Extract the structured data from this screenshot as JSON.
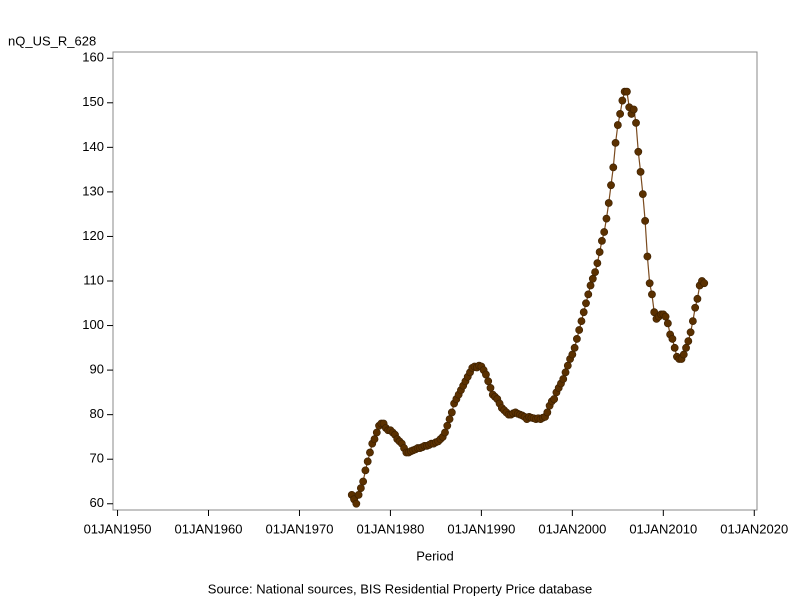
{
  "chart_data": {
    "type": "line",
    "ylabel": "nQ_US_R_628",
    "xlabel": "Period",
    "source": "Source: National sources, BIS Residential Property Price database",
    "color": "#5a3000",
    "line_color": "#7a4a1e",
    "xlim": [
      1949.5,
      2020.3
    ],
    "ylim": [
      58.6,
      161.4
    ],
    "xticks": [
      {
        "value": 1950,
        "label": "01JAN1950"
      },
      {
        "value": 1960,
        "label": "01JAN1960"
      },
      {
        "value": 1970,
        "label": "01JAN1970"
      },
      {
        "value": 1980,
        "label": "01JAN1980"
      },
      {
        "value": 1990,
        "label": "01JAN1990"
      },
      {
        "value": 2000,
        "label": "01JAN2000"
      },
      {
        "value": 2010,
        "label": "01JAN2010"
      },
      {
        "value": 2020,
        "label": "01JAN2020"
      }
    ],
    "yticks": [
      60,
      70,
      80,
      90,
      100,
      110,
      120,
      130,
      140,
      150,
      160
    ],
    "x": [
      1975.75,
      1976,
      1976.25,
      1976.5,
      1976.75,
      1977,
      1977.25,
      1977.5,
      1977.75,
      1978,
      1978.25,
      1978.5,
      1978.75,
      1979,
      1979.25,
      1979.5,
      1979.75,
      1980,
      1980.25,
      1980.5,
      1980.75,
      1981,
      1981.25,
      1981.5,
      1981.75,
      1982,
      1982.25,
      1982.5,
      1982.75,
      1983,
      1983.25,
      1983.5,
      1983.75,
      1984,
      1984.25,
      1984.5,
      1984.75,
      1985,
      1985.25,
      1985.5,
      1985.75,
      1986,
      1986.25,
      1986.5,
      1986.75,
      1987,
      1987.25,
      1987.5,
      1987.75,
      1988,
      1988.25,
      1988.5,
      1988.75,
      1989,
      1989.25,
      1989.5,
      1989.75,
      1990,
      1990.25,
      1990.5,
      1990.75,
      1991,
      1991.25,
      1991.5,
      1991.75,
      1992,
      1992.25,
      1992.5,
      1992.75,
      1993,
      1993.25,
      1993.5,
      1993.75,
      1994,
      1994.25,
      1994.5,
      1994.75,
      1995,
      1995.25,
      1995.5,
      1995.75,
      1996,
      1996.25,
      1996.5,
      1996.75,
      1997,
      1997.25,
      1997.5,
      1997.75,
      1998,
      1998.25,
      1998.5,
      1998.75,
      1999,
      1999.25,
      1999.5,
      1999.75,
      2000,
      2000.25,
      2000.5,
      2000.75,
      2001,
      2001.25,
      2001.5,
      2001.75,
      2002,
      2002.25,
      2002.5,
      2002.75,
      2003,
      2003.25,
      2003.5,
      2003.75,
      2004,
      2004.25,
      2004.5,
      2004.75,
      2005,
      2005.25,
      2005.5,
      2005.75,
      2006,
      2006.25,
      2006.5,
      2006.75,
      2007,
      2007.25,
      2007.5,
      2007.75,
      2008,
      2008.25,
      2008.5,
      2008.75,
      2009,
      2009.25,
      2009.5,
      2009.75,
      2010,
      2010.25,
      2010.5,
      2010.75,
      2011,
      2011.25,
      2011.5,
      2011.75,
      2012,
      2012.25,
      2012.5,
      2012.75,
      2013,
      2013.25,
      2013.5,
      2013.75,
      2014,
      2014.25,
      2014.5
    ],
    "values": [
      62,
      61,
      60,
      62,
      63.5,
      65,
      67.5,
      69.5,
      71.5,
      73.5,
      74.5,
      76,
      77.5,
      78,
      78,
      77,
      76.5,
      76.5,
      76,
      75.5,
      74.5,
      74,
      73.5,
      72.5,
      71.5,
      71.5,
      71.8,
      72,
      72.2,
      72.5,
      72.5,
      72.7,
      73,
      73,
      73.2,
      73.5,
      73.5,
      73.8,
      74,
      74.5,
      75,
      76,
      77.5,
      79,
      80.5,
      82.5,
      83.5,
      84.5,
      85.5,
      86.5,
      87.5,
      88.5,
      89.5,
      90.5,
      90.8,
      90.6,
      91,
      90.8,
      90,
      89,
      87.5,
      86,
      84.5,
      84,
      83.5,
      82.5,
      81.5,
      81,
      80.5,
      80,
      80,
      80.3,
      80.5,
      80.2,
      80,
      79.8,
      79.5,
      79,
      79.5,
      79.3,
      79.2,
      79,
      79.2,
      79,
      79.3,
      79.5,
      80.5,
      82,
      83,
      83.5,
      85,
      86,
      87,
      88,
      89.5,
      91,
      92.5,
      93.5,
      95,
      97,
      99,
      101,
      103,
      105,
      107,
      109,
      110.5,
      112,
      114,
      116.5,
      119,
      121,
      124,
      127.5,
      131.5,
      135.5,
      141,
      145,
      147.5,
      150.5,
      152.5,
      152.5,
      149,
      147.5,
      148.5,
      145.5,
      139,
      134.5,
      129.5,
      123.5,
      115.5,
      109.5,
      107,
      103,
      101.5,
      102,
      102.5,
      102.5,
      102,
      100.5,
      98,
      97,
      95,
      93,
      92.5,
      92.5,
      93.5,
      95,
      96.5,
      98.5,
      101,
      104,
      106,
      109,
      110,
      109.5
    ]
  }
}
